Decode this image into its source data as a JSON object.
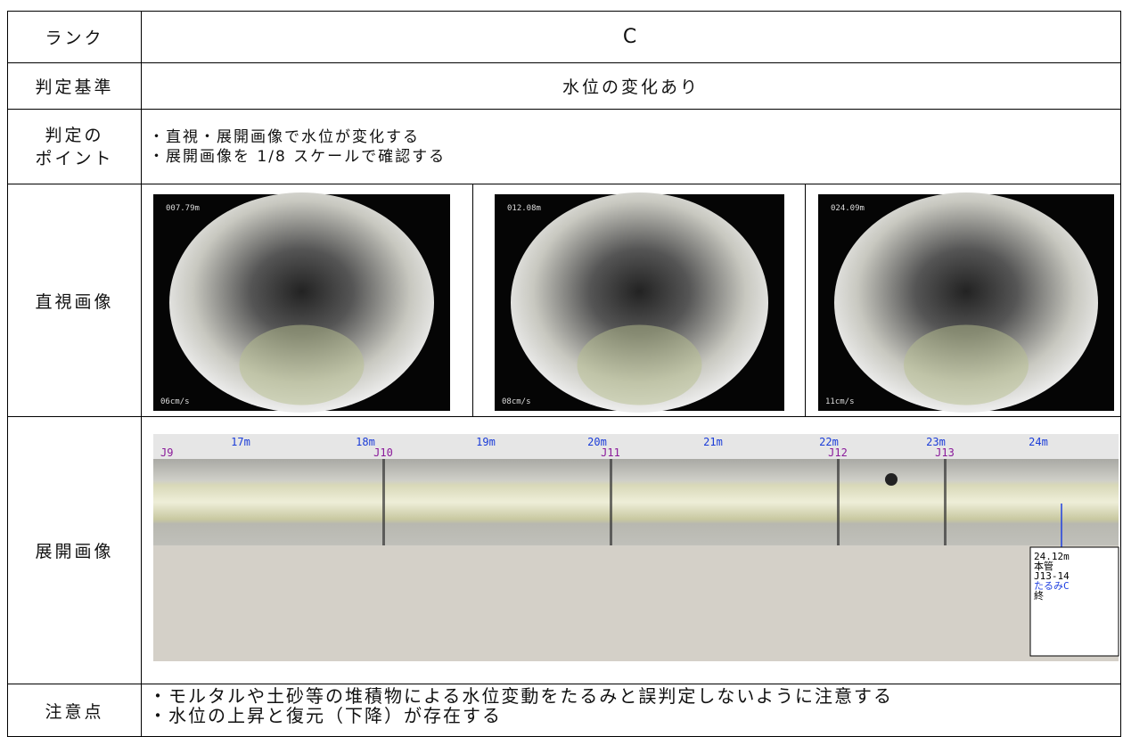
{
  "table": {
    "rows": [
      {
        "label": "ランク",
        "content": "C"
      },
      {
        "label": "判定基準",
        "content": "水位の変化あり"
      },
      {
        "label_lines": [
          "判定の",
          "ポイント"
        ],
        "lines": [
          "・直視・展開画像で水位が変化する",
          "・展開画像を 1/8 スケールで確認する"
        ]
      },
      {
        "label": "直視画像",
        "images": [
          {
            "distance": "007.79m",
            "speed": "06cm/s"
          },
          {
            "distance": "012.08m",
            "speed": "08cm/s"
          },
          {
            "distance": "024.09m",
            "speed": "11cm/s"
          }
        ]
      },
      {
        "label": "展開画像",
        "scale": [
          "17m",
          "18m",
          "19m",
          "20m",
          "21m",
          "22m",
          "23m",
          "24m"
        ],
        "joints": [
          "J9",
          "J10",
          "J11",
          "J12",
          "J13"
        ],
        "note": [
          "24.12m",
          "本管",
          "J13-14",
          "たるみC",
          "終"
        ]
      },
      {
        "label": "注意点",
        "lines": [
          "・モルタルや土砂等の堆積物による水位変動をたるみと誤判定しないように注意する",
          "・水位の上昇と復元（下降）が存在する"
        ]
      }
    ]
  }
}
